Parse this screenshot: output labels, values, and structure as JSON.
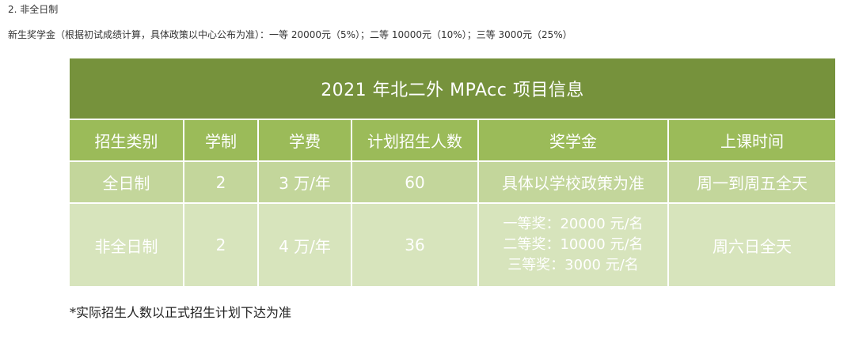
{
  "section_heading": "2. 非全日制",
  "scholarship_line": "新生奖学金（根据初试成绩计算，具体政策以中心公布为准）：一等 20000元（5%）；二等 10000元（10%）；三等 3000元（25%）",
  "table": {
    "title": "2021 年北二外 MPAcc 项目信息",
    "headers": [
      "招生类别",
      "学制",
      "学费",
      "计划招生人数",
      "奖学金",
      "上课时间"
    ],
    "rows": [
      {
        "category": "全日制",
        "duration": "2",
        "tuition": "3 万/年",
        "enrollment": "60",
        "scholarship_lines": [
          "具体以学校政策为准"
        ],
        "schedule": "周一到周五全天"
      },
      {
        "category": "非全日制",
        "duration": "2",
        "tuition": "4 万/年",
        "enrollment": "36",
        "scholarship_lines": [
          "一等奖：20000 元/名",
          "二等奖：10000 元/名",
          "三等奖：3000 元/名"
        ],
        "schedule": "周六日全天"
      }
    ]
  },
  "footnote": "*实际招生人数以正式招生计划下达为准",
  "colors": {
    "title_bg": "#76923c",
    "header_bg": "#9bbb59",
    "row_full_bg": "#c3d69b",
    "row_part_bg": "#d7e4bc",
    "table_text": "#ffffff"
  }
}
